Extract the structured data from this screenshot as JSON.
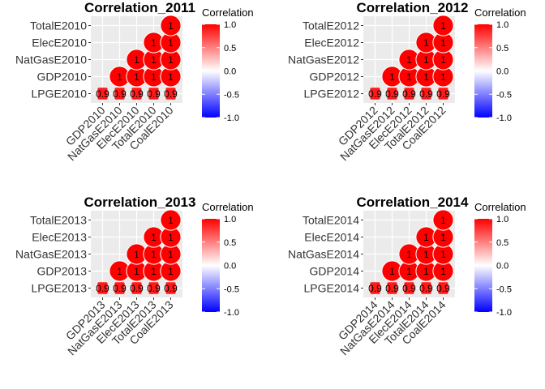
{
  "legend": {
    "title": "Correlation",
    "ticks": [
      "1.0",
      "0.5",
      "0.0",
      "-0.5",
      "-1.0"
    ],
    "colors": {
      "high": "#ff0000",
      "mid": "#ffffff",
      "low": "#0000ff"
    }
  },
  "chart_data": [
    {
      "type": "heatmap",
      "title": "Correlation_2011",
      "x_labels": [
        "GDP2010",
        "NatGasE2010",
        "ElecE2010",
        "TotalE2010",
        "CoalE2010"
      ],
      "y_labels": [
        "LPGE2010",
        "GDP2010",
        "NatGasE2010",
        "ElecE2010",
        "TotalE2010"
      ],
      "cells": [
        {
          "x": 0,
          "y": 0,
          "value": 0.9,
          "label": "0.9"
        },
        {
          "x": 1,
          "y": 0,
          "value": 0.9,
          "label": "0.9"
        },
        {
          "x": 2,
          "y": 0,
          "value": 0.9,
          "label": "0.9"
        },
        {
          "x": 3,
          "y": 0,
          "value": 0.9,
          "label": "0.9"
        },
        {
          "x": 4,
          "y": 0,
          "value": 0.9,
          "label": "0.9"
        },
        {
          "x": 1,
          "y": 1,
          "value": 1,
          "label": "1"
        },
        {
          "x": 2,
          "y": 1,
          "value": 1,
          "label": "1"
        },
        {
          "x": 3,
          "y": 1,
          "value": 1,
          "label": "1"
        },
        {
          "x": 4,
          "y": 1,
          "value": 1,
          "label": "1"
        },
        {
          "x": 2,
          "y": 2,
          "value": 1,
          "label": "1"
        },
        {
          "x": 3,
          "y": 2,
          "value": 1,
          "label": "1"
        },
        {
          "x": 4,
          "y": 2,
          "value": 1,
          "label": "1"
        },
        {
          "x": 3,
          "y": 3,
          "value": 1,
          "label": "1"
        },
        {
          "x": 4,
          "y": 3,
          "value": 1,
          "label": "1"
        },
        {
          "x": 4,
          "y": 4,
          "value": 1,
          "label": "1"
        }
      ]
    },
    {
      "type": "heatmap",
      "title": "Correlation_2012",
      "x_labels": [
        "GDP2012",
        "NatGasE2012",
        "ElecE2012",
        "TotalE2012",
        "CoalE2012"
      ],
      "y_labels": [
        "LPGE2012",
        "GDP2012",
        "NatGasE2012",
        "ElecE2012",
        "TotalE2012"
      ],
      "cells": [
        {
          "x": 0,
          "y": 0,
          "value": 0.9,
          "label": "0.9"
        },
        {
          "x": 1,
          "y": 0,
          "value": 0.9,
          "label": "0.9"
        },
        {
          "x": 2,
          "y": 0,
          "value": 0.9,
          "label": "0.9"
        },
        {
          "x": 3,
          "y": 0,
          "value": 0.9,
          "label": "0.9"
        },
        {
          "x": 4,
          "y": 0,
          "value": 0.9,
          "label": "0.9"
        },
        {
          "x": 1,
          "y": 1,
          "value": 1,
          "label": "1"
        },
        {
          "x": 2,
          "y": 1,
          "value": 1,
          "label": "1"
        },
        {
          "x": 3,
          "y": 1,
          "value": 1,
          "label": "1"
        },
        {
          "x": 4,
          "y": 1,
          "value": 1,
          "label": "1"
        },
        {
          "x": 2,
          "y": 2,
          "value": 1,
          "label": "1"
        },
        {
          "x": 3,
          "y": 2,
          "value": 1,
          "label": "1"
        },
        {
          "x": 4,
          "y": 2,
          "value": 1,
          "label": "1"
        },
        {
          "x": 3,
          "y": 3,
          "value": 1,
          "label": "1"
        },
        {
          "x": 4,
          "y": 3,
          "value": 1,
          "label": "1"
        },
        {
          "x": 4,
          "y": 4,
          "value": 1,
          "label": "1"
        }
      ]
    },
    {
      "type": "heatmap",
      "title": "Correlation_2013",
      "x_labels": [
        "GDP2013",
        "NatGasE2013",
        "ElecE2013",
        "TotalE2013",
        "CoalE2013"
      ],
      "y_labels": [
        "LPGE2013",
        "GDP2013",
        "NatGasE2013",
        "ElecE2013",
        "TotalE2013"
      ],
      "cells": [
        {
          "x": 0,
          "y": 0,
          "value": 0.9,
          "label": "0.9"
        },
        {
          "x": 1,
          "y": 0,
          "value": 0.9,
          "label": "0.9"
        },
        {
          "x": 2,
          "y": 0,
          "value": 0.9,
          "label": "0.9"
        },
        {
          "x": 3,
          "y": 0,
          "value": 0.9,
          "label": "0.9"
        },
        {
          "x": 4,
          "y": 0,
          "value": 0.9,
          "label": "0.9"
        },
        {
          "x": 1,
          "y": 1,
          "value": 1,
          "label": "1"
        },
        {
          "x": 2,
          "y": 1,
          "value": 1,
          "label": "1"
        },
        {
          "x": 3,
          "y": 1,
          "value": 1,
          "label": "1"
        },
        {
          "x": 4,
          "y": 1,
          "value": 1,
          "label": "1"
        },
        {
          "x": 2,
          "y": 2,
          "value": 1,
          "label": "1"
        },
        {
          "x": 3,
          "y": 2,
          "value": 1,
          "label": "1"
        },
        {
          "x": 4,
          "y": 2,
          "value": 1,
          "label": "1"
        },
        {
          "x": 3,
          "y": 3,
          "value": 1,
          "label": "1"
        },
        {
          "x": 4,
          "y": 3,
          "value": 1,
          "label": "1"
        },
        {
          "x": 4,
          "y": 4,
          "value": 1,
          "label": "1"
        }
      ]
    },
    {
      "type": "heatmap",
      "title": "Correlation_2014",
      "x_labels": [
        "GDP2014",
        "NatGasE2014",
        "ElecE2014",
        "TotalE2014",
        "CoalE2014"
      ],
      "y_labels": [
        "LPGE2014",
        "GDP2014",
        "NatGasE2014",
        "ElecE2014",
        "TotalE2014"
      ],
      "cells": [
        {
          "x": 0,
          "y": 0,
          "value": 0.9,
          "label": "0.9"
        },
        {
          "x": 1,
          "y": 0,
          "value": 0.9,
          "label": "0.9"
        },
        {
          "x": 2,
          "y": 0,
          "value": 0.9,
          "label": "0.9"
        },
        {
          "x": 3,
          "y": 0,
          "value": 0.9,
          "label": "0.9"
        },
        {
          "x": 4,
          "y": 0,
          "value": 0.9,
          "label": "0.9"
        },
        {
          "x": 1,
          "y": 1,
          "value": 1,
          "label": "1"
        },
        {
          "x": 2,
          "y": 1,
          "value": 1,
          "label": "1"
        },
        {
          "x": 3,
          "y": 1,
          "value": 1,
          "label": "1"
        },
        {
          "x": 4,
          "y": 1,
          "value": 1,
          "label": "1"
        },
        {
          "x": 2,
          "y": 2,
          "value": 1,
          "label": "1"
        },
        {
          "x": 3,
          "y": 2,
          "value": 1,
          "label": "1"
        },
        {
          "x": 4,
          "y": 2,
          "value": 1,
          "label": "1"
        },
        {
          "x": 3,
          "y": 3,
          "value": 1,
          "label": "1"
        },
        {
          "x": 4,
          "y": 3,
          "value": 1,
          "label": "1"
        },
        {
          "x": 4,
          "y": 4,
          "value": 1,
          "label": "1"
        }
      ]
    }
  ]
}
